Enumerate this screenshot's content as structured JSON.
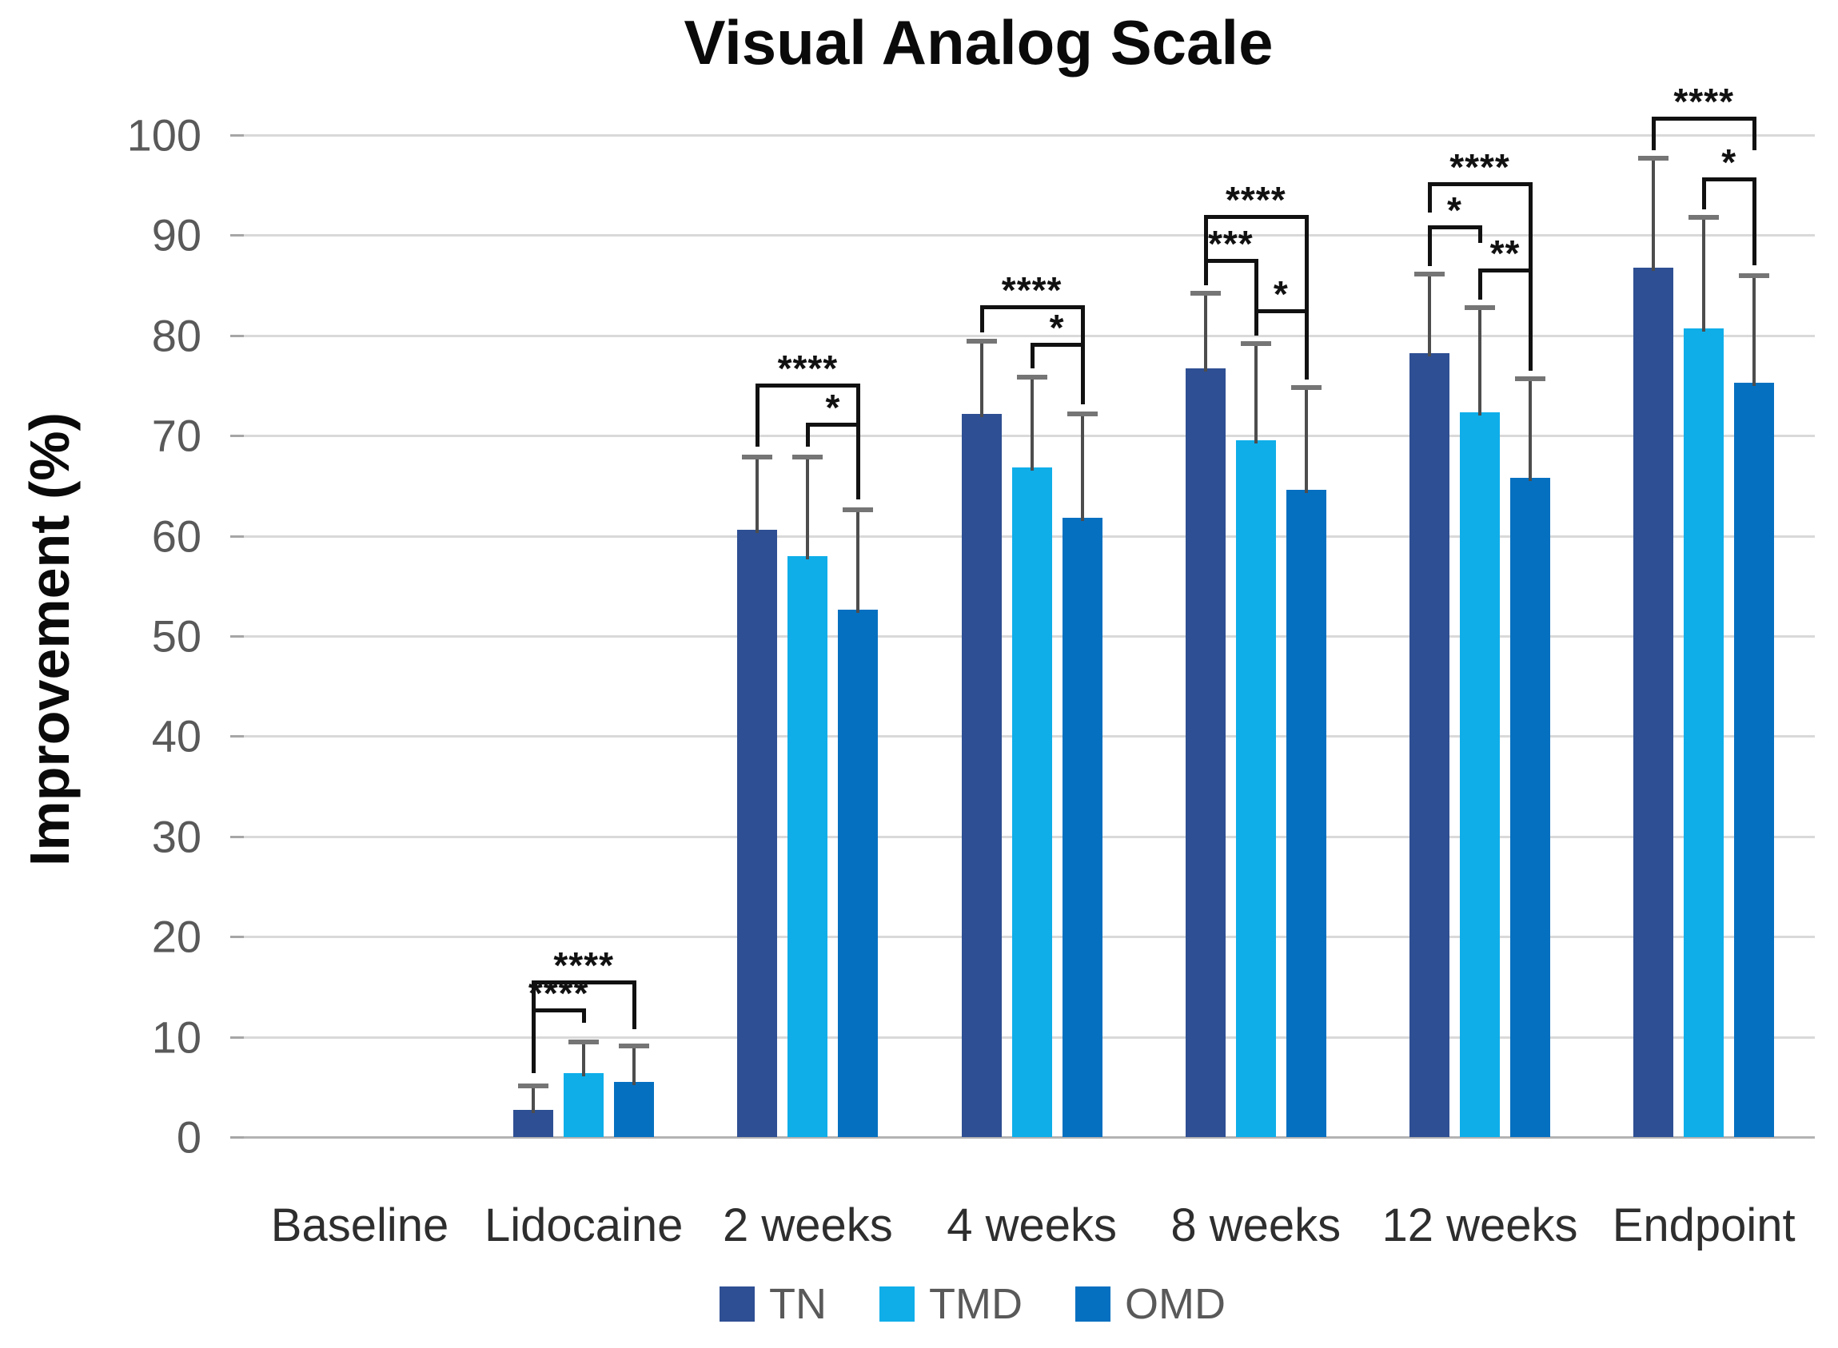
{
  "title": "Visual Analog Scale",
  "y_axis": {
    "label": "Improvement (%)",
    "ticks": [
      "0",
      "10",
      "20",
      "30",
      "40",
      "50",
      "60",
      "70",
      "80",
      "90",
      "100"
    ]
  },
  "x_axis": {
    "categories": [
      "Baseline",
      "Lidocaine",
      "2 weeks",
      "4 weeks",
      "8 weeks",
      "12 weeks",
      "Endpoint"
    ]
  },
  "legend": {
    "items": [
      {
        "label": "TN",
        "color": "#2E4F93"
      },
      {
        "label": "TMD",
        "color": "#0FAEE9"
      },
      {
        "label": "OMD",
        "color": "#0670C0"
      }
    ]
  },
  "colors": {
    "grid": "#d9d9d9",
    "baseline_axis": "#b3b3b3",
    "tick": "#a6a6a6",
    "error_line": "#4d4d4d",
    "error_cap": "#757575",
    "bracket": "#111111",
    "series_tn": "#2E4F93",
    "series_tmd": "#0FAEE9",
    "series_omd": "#0670C0"
  },
  "chart_data": {
    "type": "bar",
    "title": "Visual Analog Scale",
    "xlabel": "",
    "ylabel": "Improvement (%)",
    "ylim": [
      0,
      100
    ],
    "y_tick_step": 10,
    "grid": true,
    "legend_position": "bottom",
    "categories": [
      "Baseline",
      "Lidocaine",
      "2 weeks",
      "4 weeks",
      "8 weeks",
      "12 weeks",
      "Endpoint"
    ],
    "series": [
      {
        "name": "TN",
        "color": "#2E4F93",
        "values": [
          0,
          2.7,
          60.6,
          72.2,
          76.7,
          78.2,
          86.8
        ],
        "error_up": [
          0,
          2.4,
          7.3,
          7.2,
          7.5,
          7.9,
          10.9
        ]
      },
      {
        "name": "TMD",
        "color": "#0FAEE9",
        "values": [
          0,
          6.4,
          58.0,
          66.8,
          69.5,
          72.3,
          80.7
        ],
        "error_up": [
          0,
          3.1,
          9.9,
          9.0,
          9.7,
          10.5,
          11.1
        ]
      },
      {
        "name": "OMD",
        "color": "#0670C0",
        "values": [
          0,
          5.5,
          52.6,
          61.8,
          64.6,
          65.8,
          75.3
        ],
        "error_up": [
          0,
          3.6,
          10.0,
          10.4,
          10.2,
          9.9,
          10.7
        ]
      }
    ],
    "significance_brackets": [
      {
        "category": "Lidocaine",
        "between": [
          "TN",
          "TMD"
        ],
        "label": "****",
        "y": 12.8,
        "leg_a_to": 6.4,
        "leg_b_to": 11.4
      },
      {
        "category": "Lidocaine",
        "between": [
          "TN",
          "OMD"
        ],
        "label": "****",
        "y": 15.6,
        "leg_a_to": 6.4,
        "leg_b_to": 10.8
      },
      {
        "category": "2 weeks",
        "between": [
          "TMD",
          "OMD"
        ],
        "label": "*",
        "y": 71.3,
        "leg_a_to": 68.9,
        "leg_b_to": 63.6
      },
      {
        "category": "2 weeks",
        "between": [
          "TN",
          "OMD"
        ],
        "label": "****",
        "y": 75.2,
        "leg_a_to": 68.9,
        "leg_b_to": 64.2
      },
      {
        "category": "4 weeks",
        "between": [
          "TMD",
          "OMD"
        ],
        "label": "*",
        "y": 79.3,
        "leg_a_to": 76.7,
        "leg_b_to": 73.1
      },
      {
        "category": "4 weeks",
        "between": [
          "TN",
          "OMD"
        ],
        "label": "****",
        "y": 83.0,
        "leg_a_to": 80.3,
        "leg_b_to": 74.0
      },
      {
        "category": "8 weeks",
        "between": [
          "TMD",
          "OMD"
        ],
        "label": "*",
        "y": 82.6,
        "leg_a_to": 80.2,
        "leg_b_to": 75.6
      },
      {
        "category": "8 weeks",
        "between": [
          "TN",
          "TMD"
        ],
        "label": "***",
        "y": 87.6,
        "leg_a_to": 85.0,
        "leg_b_to": 80.0
      },
      {
        "category": "8 weeks",
        "between": [
          "TN",
          "OMD"
        ],
        "label": "****",
        "y": 92.0,
        "leg_a_to": 86.3,
        "leg_b_to": 75.6
      },
      {
        "category": "12 weeks",
        "between": [
          "TMD",
          "OMD"
        ],
        "label": "**",
        "y": 86.7,
        "leg_a_to": 83.6,
        "leg_b_to": 76.5
      },
      {
        "category": "12 weeks",
        "between": [
          "TN",
          "TMD"
        ],
        "label": "*",
        "y": 91.0,
        "leg_a_to": 86.9,
        "leg_b_to": 89.2
      },
      {
        "category": "12 weeks",
        "between": [
          "TN",
          "OMD"
        ],
        "label": "****",
        "y": 95.3,
        "leg_a_to": 92.3,
        "leg_b_to": 77.5
      },
      {
        "category": "Endpoint",
        "between": [
          "TMD",
          "OMD"
        ],
        "label": "*",
        "y": 95.8,
        "leg_a_to": 92.6,
        "leg_b_to": 87.0
      },
      {
        "category": "Endpoint",
        "between": [
          "TN",
          "OMD"
        ],
        "label": "****",
        "y": 101.8,
        "leg_a_to": 98.5,
        "leg_b_to": 98.5
      }
    ]
  }
}
